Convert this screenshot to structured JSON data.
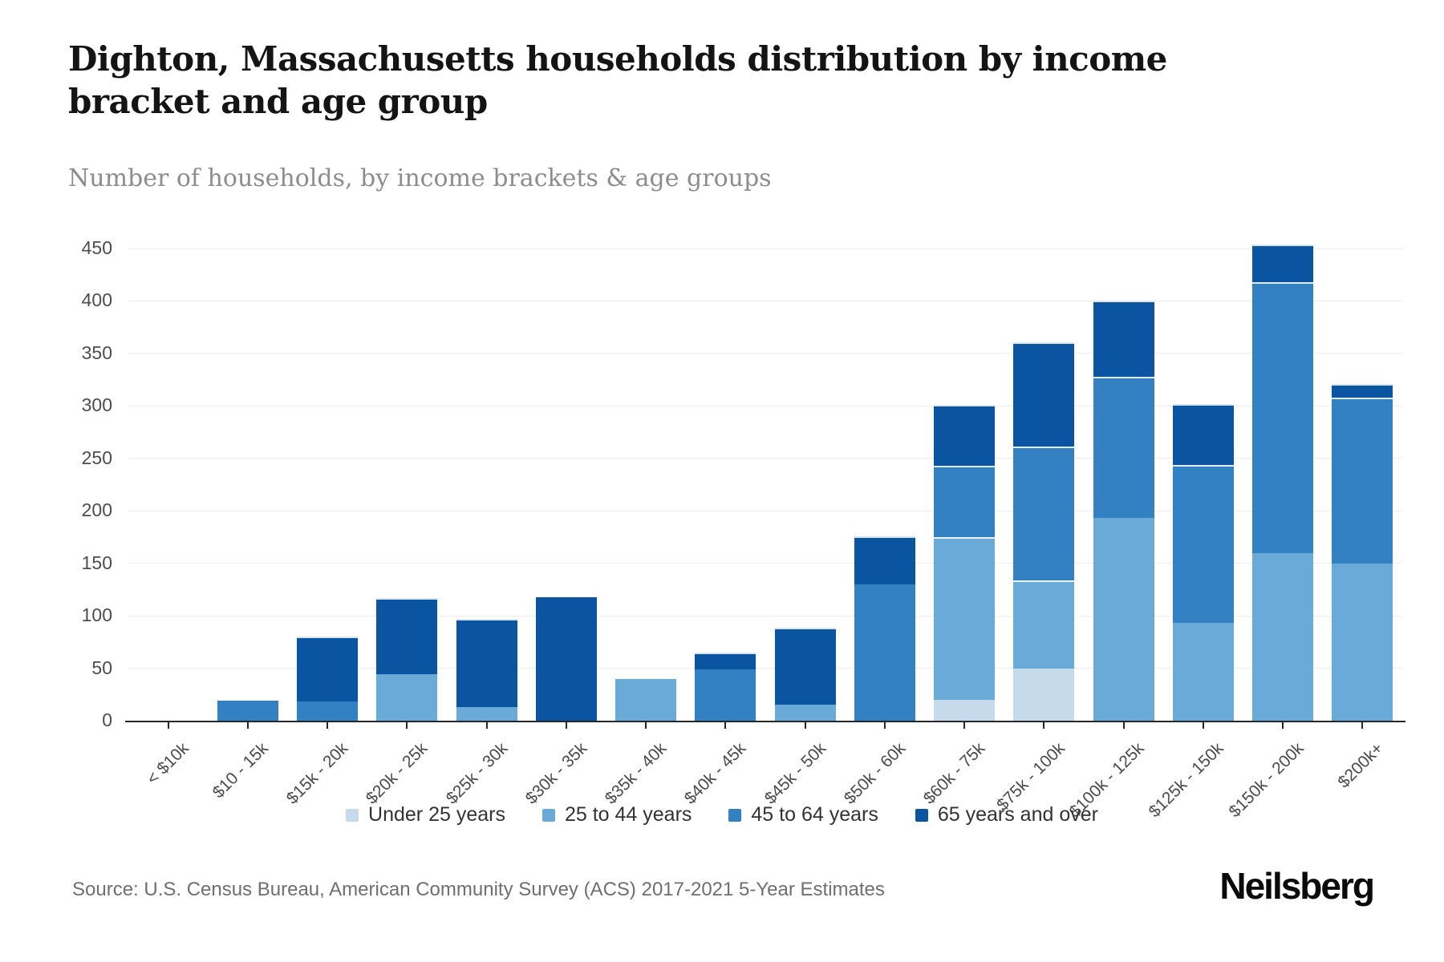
{
  "header": {
    "title": "Dighton, Massachusetts households distribution by income bracket and age group",
    "subtitle": "Number of households, by income brackets & age groups"
  },
  "chart_data": {
    "type": "bar",
    "stacked": true,
    "title": "Dighton, Massachusetts households distribution by income bracket and age group",
    "xlabel": "",
    "ylabel": "Number of households",
    "ylim": [
      0,
      450
    ],
    "ytick_step": 50,
    "grid": true,
    "legend_position": "bottom",
    "categories": [
      "< $10k",
      "$10 - 15k",
      "$15k - 20k",
      "$20k - 25k",
      "$25k - 30k",
      "$30k - 35k",
      "$35k - 40k",
      "$40k - 45k",
      "$45k - 50k",
      "$50k - 60k",
      "$60k - 75k",
      "$75k - 100k",
      "$100k - 125k",
      "$125k - 150k",
      "$150k - 200k",
      "$200k+"
    ],
    "series": [
      {
        "name": "Under 25 years",
        "color": "#c5daeb",
        "values": [
          0,
          0,
          0,
          0,
          0,
          0,
          0,
          0,
          0,
          0,
          20,
          50,
          0,
          0,
          0,
          0
        ]
      },
      {
        "name": "25 to 44 years",
        "color": "#6aaad8",
        "values": [
          0,
          0,
          0,
          44,
          13,
          0,
          40,
          0,
          15,
          0,
          155,
          84,
          193,
          93,
          160,
          150
        ]
      },
      {
        "name": "45 to 64 years",
        "color": "#3381c3",
        "values": [
          0,
          19,
          18,
          0,
          0,
          0,
          0,
          49,
          0,
          130,
          68,
          127,
          135,
          151,
          258,
          158
        ]
      },
      {
        "name": "65 years and over",
        "color": "#0b54a1",
        "values": [
          0,
          0,
          62,
          73,
          84,
          118,
          0,
          16,
          74,
          46,
          58,
          100,
          72,
          58,
          36,
          13
        ]
      }
    ],
    "totals": [
      0,
      19,
      80,
      117,
      97,
      118,
      40,
      65,
      89,
      176,
      301,
      361,
      400,
      302,
      454,
      321
    ]
  },
  "footer": {
    "source": "Source: U.S. Census Bureau, American Community Survey (ACS) 2017-2021 5-Year Estimates",
    "brand": "Neilsberg"
  }
}
